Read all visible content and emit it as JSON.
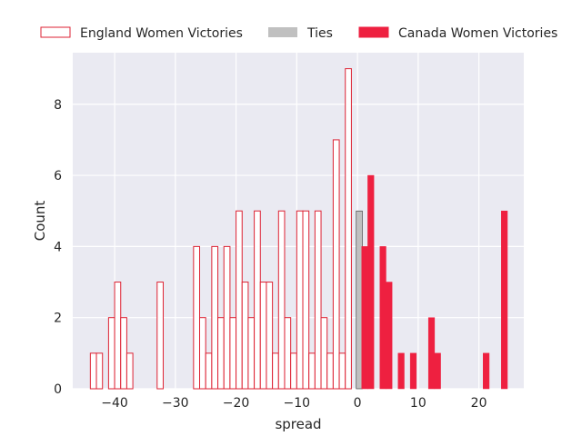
{
  "chart_data": {
    "type": "bar",
    "title": "",
    "xlabel": "spread",
    "ylabel": "Count",
    "xlim": [
      -46.9,
      27.4
    ],
    "ylim": [
      0,
      9.45
    ],
    "xticks": [
      -40,
      -30,
      -20,
      -10,
      0,
      10,
      20
    ],
    "yticks": [
      0,
      2,
      4,
      6,
      8
    ],
    "grid": true,
    "legend_position": "top",
    "bin_width": 1,
    "series": [
      {
        "name": "England Women Victories",
        "style": "outline",
        "edge_color": "#dd2233",
        "bins": [
          {
            "x": -44,
            "count": 1
          },
          {
            "x": -43,
            "count": 1
          },
          {
            "x": -41,
            "count": 2
          },
          {
            "x": -40,
            "count": 3
          },
          {
            "x": -39,
            "count": 2
          },
          {
            "x": -38,
            "count": 1
          },
          {
            "x": -33,
            "count": 3
          },
          {
            "x": -27,
            "count": 4
          },
          {
            "x": -26,
            "count": 2
          },
          {
            "x": -25,
            "count": 1
          },
          {
            "x": -24,
            "count": 4
          },
          {
            "x": -23,
            "count": 2
          },
          {
            "x": -22,
            "count": 4
          },
          {
            "x": -21,
            "count": 2
          },
          {
            "x": -20,
            "count": 5
          },
          {
            "x": -19,
            "count": 3
          },
          {
            "x": -18,
            "count": 2
          },
          {
            "x": -17,
            "count": 5
          },
          {
            "x": -16,
            "count": 3
          },
          {
            "x": -15,
            "count": 3
          },
          {
            "x": -14,
            "count": 1
          },
          {
            "x": -13,
            "count": 5
          },
          {
            "x": -12,
            "count": 2
          },
          {
            "x": -11,
            "count": 1
          },
          {
            "x": -10,
            "count": 5
          },
          {
            "x": -9,
            "count": 5
          },
          {
            "x": -8,
            "count": 1
          },
          {
            "x": -7,
            "count": 5
          },
          {
            "x": -6,
            "count": 2
          },
          {
            "x": -5,
            "count": 1
          },
          {
            "x": -4,
            "count": 7
          },
          {
            "x": -3,
            "count": 1
          },
          {
            "x": -2,
            "count": 9
          }
        ]
      },
      {
        "name": "Ties",
        "style": "filled",
        "color": "#c0c0c0",
        "bins": [
          {
            "x": -0.2,
            "count": 5
          }
        ]
      },
      {
        "name": "Canada Women Victories",
        "style": "filled",
        "color": "#ee2040",
        "bins": [
          {
            "x": 0.7,
            "count": 4
          },
          {
            "x": 1.7,
            "count": 6
          },
          {
            "x": 3.7,
            "count": 4
          },
          {
            "x": 4.7,
            "count": 3
          },
          {
            "x": 6.7,
            "count": 1
          },
          {
            "x": 8.7,
            "count": 1
          },
          {
            "x": 11.7,
            "count": 2
          },
          {
            "x": 12.7,
            "count": 1
          },
          {
            "x": 20.7,
            "count": 1
          },
          {
            "x": 23.7,
            "count": 5
          }
        ]
      }
    ]
  }
}
